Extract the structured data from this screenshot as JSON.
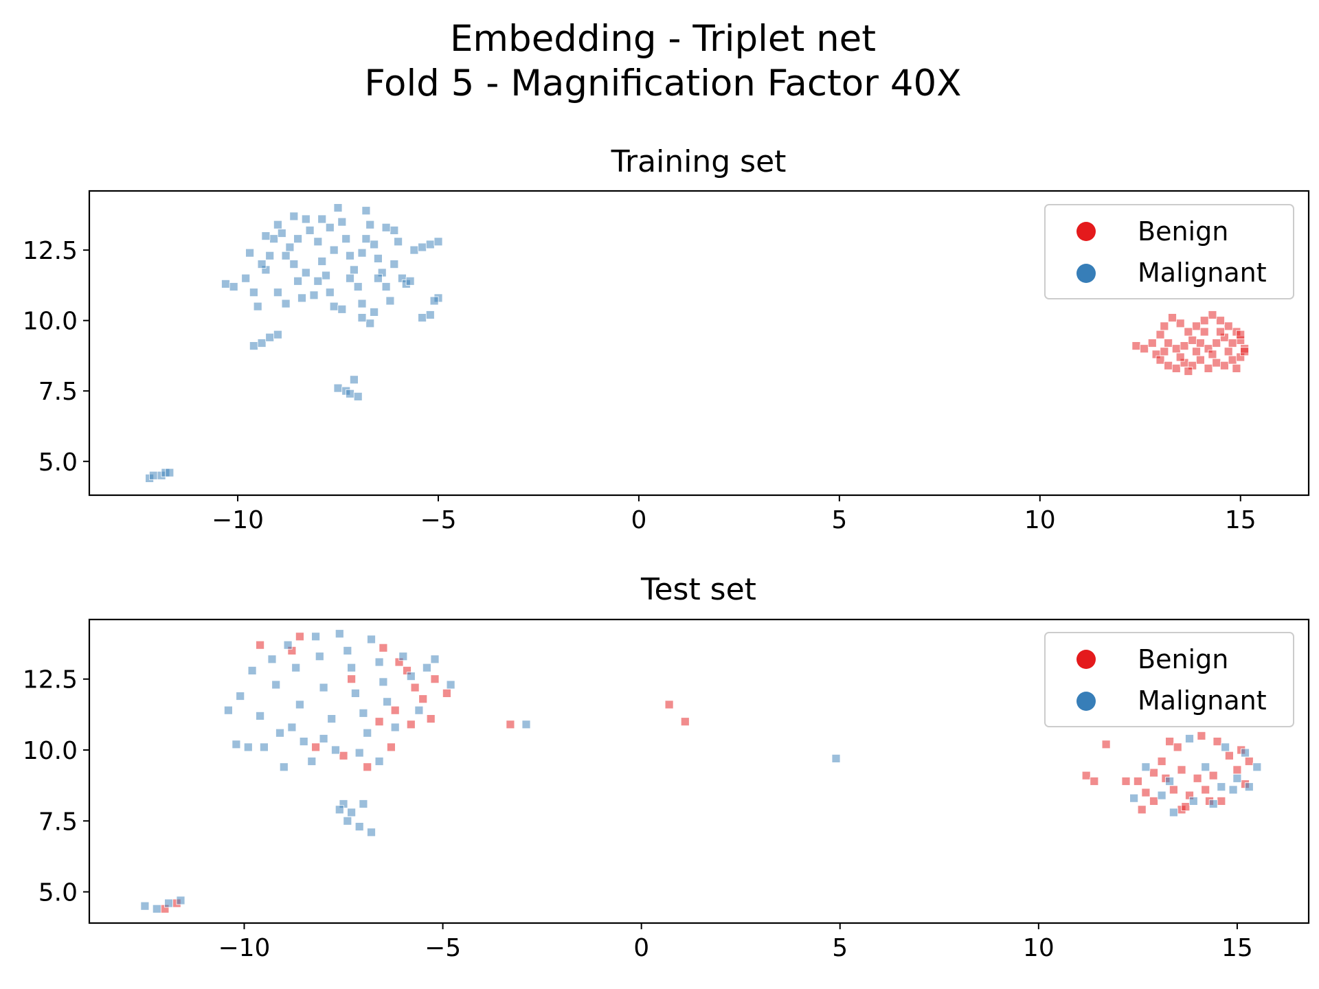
{
  "figure": {
    "title_line1": "Embedding - Triplet net",
    "title_line2": "Fold 5 - Magnification Factor 40X"
  },
  "chart_data": [
    {
      "type": "scatter",
      "title": "Training set",
      "xlabel": "",
      "ylabel": "",
      "xlim": [
        -13.7,
        16.7
      ],
      "ylim": [
        3.8,
        14.6
      ],
      "xticks": [
        -10,
        -5,
        0,
        5,
        10,
        15
      ],
      "xtick_labels": [
        "−10",
        "−5",
        "0",
        "5",
        "10",
        "15"
      ],
      "yticks": [
        5.0,
        7.5,
        10.0,
        12.5
      ],
      "ytick_labels": [
        "5.0",
        "7.5",
        "10.0",
        "12.5"
      ],
      "grid": false,
      "legend": {
        "location": "upper right",
        "entries": [
          "Benign",
          "Malignant"
        ]
      },
      "series": [
        {
          "name": "Benign",
          "color": "#e41a1c",
          "marker": "square",
          "points": [
            [
              12.4,
              9.1
            ],
            [
              12.6,
              9.0
            ],
            [
              12.9,
              8.8
            ],
            [
              13.0,
              8.6
            ],
            [
              13.2,
              8.4
            ],
            [
              13.4,
              8.3
            ],
            [
              13.6,
              8.5
            ],
            [
              13.8,
              8.4
            ],
            [
              14.0,
              8.6
            ],
            [
              14.2,
              8.3
            ],
            [
              14.4,
              8.5
            ],
            [
              14.6,
              8.4
            ],
            [
              14.8,
              8.6
            ],
            [
              15.0,
              8.7
            ],
            [
              15.1,
              9.0
            ],
            [
              15.0,
              9.3
            ],
            [
              14.9,
              9.6
            ],
            [
              14.7,
              9.8
            ],
            [
              14.5,
              10.0
            ],
            [
              14.3,
              10.2
            ],
            [
              14.1,
              10.0
            ],
            [
              13.9,
              9.8
            ],
            [
              13.7,
              9.6
            ],
            [
              13.5,
              9.9
            ],
            [
              13.3,
              10.1
            ],
            [
              13.1,
              9.8
            ],
            [
              13.0,
              9.5
            ],
            [
              13.2,
              9.2
            ],
            [
              13.4,
              9.0
            ],
            [
              13.6,
              9.1
            ],
            [
              13.8,
              9.3
            ],
            [
              14.0,
              9.2
            ],
            [
              14.2,
              9.0
            ],
            [
              14.4,
              9.2
            ],
            [
              14.6,
              9.4
            ],
            [
              14.8,
              9.2
            ],
            [
              15.0,
              9.5
            ],
            [
              13.9,
              8.9
            ],
            [
              14.3,
              8.8
            ],
            [
              14.7,
              8.9
            ],
            [
              13.5,
              8.7
            ],
            [
              13.1,
              8.9
            ],
            [
              12.8,
              9.2
            ],
            [
              14.1,
              9.6
            ],
            [
              14.5,
              9.6
            ],
            [
              13.7,
              8.2
            ],
            [
              14.9,
              8.3
            ],
            [
              15.1,
              8.9
            ]
          ]
        },
        {
          "name": "Malignant",
          "color": "#377eb8",
          "marker": "square",
          "points": [
            [
              -12.2,
              4.4
            ],
            [
              -12.1,
              4.5
            ],
            [
              -11.9,
              4.5
            ],
            [
              -11.8,
              4.6
            ],
            [
              -11.7,
              4.6
            ],
            [
              -7.5,
              7.6
            ],
            [
              -7.3,
              7.5
            ],
            [
              -7.2,
              7.4
            ],
            [
              -7.1,
              7.9
            ],
            [
              -7.0,
              7.3
            ],
            [
              -9.6,
              9.1
            ],
            [
              -9.4,
              9.2
            ],
            [
              -9.2,
              9.4
            ],
            [
              -9.0,
              9.5
            ],
            [
              -5.4,
              10.1
            ],
            [
              -5.2,
              10.2
            ],
            [
              -5.0,
              10.8
            ],
            [
              -5.1,
              10.7
            ],
            [
              -6.7,
              9.9
            ],
            [
              -6.9,
              10.1
            ],
            [
              -10.3,
              11.3
            ],
            [
              -10.1,
              11.2
            ],
            [
              -9.8,
              11.5
            ],
            [
              -9.6,
              11.0
            ],
            [
              -9.5,
              10.5
            ],
            [
              -9.3,
              11.8
            ],
            [
              -9.2,
              12.3
            ],
            [
              -9.1,
              12.9
            ],
            [
              -9.0,
              13.4
            ],
            [
              -8.9,
              13.1
            ],
            [
              -8.7,
              12.6
            ],
            [
              -8.6,
              12.0
            ],
            [
              -8.5,
              11.4
            ],
            [
              -8.4,
              10.8
            ],
            [
              -8.3,
              13.6
            ],
            [
              -8.2,
              13.2
            ],
            [
              -8.0,
              12.8
            ],
            [
              -7.9,
              12.1
            ],
            [
              -7.8,
              11.6
            ],
            [
              -7.7,
              11.0
            ],
            [
              -7.6,
              10.5
            ],
            [
              -7.5,
              14.0
            ],
            [
              -7.4,
              13.5
            ],
            [
              -7.3,
              12.9
            ],
            [
              -7.2,
              12.3
            ],
            [
              -7.1,
              11.8
            ],
            [
              -7.0,
              11.2
            ],
            [
              -6.9,
              10.6
            ],
            [
              -6.8,
              13.9
            ],
            [
              -6.7,
              13.4
            ],
            [
              -6.6,
              12.7
            ],
            [
              -6.5,
              12.2
            ],
            [
              -6.4,
              11.7
            ],
            [
              -6.3,
              11.2
            ],
            [
              -6.2,
              10.7
            ],
            [
              -6.1,
              13.2
            ],
            [
              -6.0,
              12.8
            ],
            [
              -5.9,
              11.5
            ],
            [
              -5.8,
              11.3
            ],
            [
              -5.6,
              12.5
            ],
            [
              -5.4,
              12.6
            ],
            [
              -5.2,
              12.7
            ],
            [
              -5.0,
              12.8
            ],
            [
              -9.4,
              12.0
            ],
            [
              -9.0,
              11.0
            ],
            [
              -8.8,
              10.6
            ],
            [
              -8.1,
              10.9
            ],
            [
              -7.4,
              10.4
            ],
            [
              -6.6,
              10.3
            ],
            [
              -8.6,
              13.7
            ],
            [
              -7.9,
              13.6
            ],
            [
              -6.3,
              13.3
            ],
            [
              -9.7,
              12.4
            ],
            [
              -8.3,
              11.7
            ],
            [
              -7.6,
              12.5
            ],
            [
              -6.9,
              12.4
            ],
            [
              -6.1,
              12.0
            ],
            [
              -5.7,
              11.4
            ],
            [
              -8.8,
              12.3
            ],
            [
              -8.0,
              11.4
            ],
            [
              -7.2,
              11.5
            ],
            [
              -6.5,
              11.5
            ],
            [
              -9.3,
              13.0
            ],
            [
              -7.7,
              13.3
            ],
            [
              -6.8,
              12.9
            ],
            [
              -8.5,
              12.9
            ]
          ]
        }
      ]
    },
    {
      "type": "scatter",
      "title": "Test set",
      "xlabel": "",
      "ylabel": "",
      "xlim": [
        -13.9,
        16.8
      ],
      "ylim": [
        3.9,
        14.6
      ],
      "xticks": [
        -10,
        -5,
        0,
        5,
        10,
        15
      ],
      "xtick_labels": [
        "−10",
        "−5",
        "0",
        "5",
        "10",
        "15"
      ],
      "yticks": [
        5.0,
        7.5,
        10.0,
        12.5
      ],
      "ytick_labels": [
        "5.0",
        "7.5",
        "10.0",
        "12.5"
      ],
      "grid": false,
      "legend": {
        "location": "upper right",
        "entries": [
          "Benign",
          "Malignant"
        ]
      },
      "series": [
        {
          "name": "Benign",
          "color": "#e41a1c",
          "marker": "square",
          "points": [
            [
              -12.0,
              4.4
            ],
            [
              -11.7,
              4.6
            ],
            [
              -9.6,
              13.7
            ],
            [
              -8.6,
              14.0
            ],
            [
              -8.8,
              13.5
            ],
            [
              -6.5,
              13.6
            ],
            [
              -6.1,
              13.1
            ],
            [
              -5.9,
              12.8
            ],
            [
              -5.7,
              12.2
            ],
            [
              -5.5,
              11.8
            ],
            [
              -5.3,
              11.1
            ],
            [
              -5.8,
              10.9
            ],
            [
              -5.2,
              12.5
            ],
            [
              -4.9,
              12.0
            ],
            [
              -6.2,
              11.4
            ],
            [
              -6.6,
              11.0
            ],
            [
              -6.3,
              10.1
            ],
            [
              -6.9,
              9.4
            ],
            [
              -7.5,
              9.8
            ],
            [
              -8.2,
              10.1
            ],
            [
              -7.3,
              12.5
            ],
            [
              -3.3,
              10.9
            ],
            [
              0.7,
              11.6
            ],
            [
              1.1,
              11.0
            ],
            [
              11.2,
              9.1
            ],
            [
              11.4,
              8.9
            ],
            [
              11.7,
              10.2
            ],
            [
              12.2,
              8.9
            ],
            [
              12.5,
              8.9
            ],
            [
              12.7,
              8.5
            ],
            [
              12.6,
              7.9
            ],
            [
              12.9,
              9.2
            ],
            [
              13.1,
              9.6
            ],
            [
              13.3,
              10.3
            ],
            [
              13.5,
              10.1
            ],
            [
              13.6,
              9.3
            ],
            [
              13.4,
              8.6
            ],
            [
              13.6,
              7.9
            ],
            [
              13.8,
              8.4
            ],
            [
              14.0,
              9.0
            ],
            [
              14.2,
              8.6
            ],
            [
              14.4,
              9.1
            ],
            [
              14.6,
              8.2
            ],
            [
              14.8,
              9.8
            ],
            [
              15.0,
              9.3
            ],
            [
              15.2,
              8.8
            ],
            [
              14.1,
              10.5
            ],
            [
              14.5,
              10.3
            ],
            [
              13.2,
              9.0
            ],
            [
              12.9,
              8.2
            ],
            [
              15.3,
              9.6
            ],
            [
              13.7,
              8.0
            ],
            [
              14.3,
              8.2
            ],
            [
              15.1,
              10.0
            ]
          ]
        },
        {
          "name": "Malignant",
          "color": "#377eb8",
          "marker": "square",
          "points": [
            [
              -12.5,
              4.5
            ],
            [
              -12.2,
              4.4
            ],
            [
              -11.9,
              4.6
            ],
            [
              -11.6,
              4.7
            ],
            [
              -7.5,
              8.1
            ],
            [
              -7.3,
              7.8
            ],
            [
              -7.0,
              8.1
            ],
            [
              -7.4,
              7.5
            ],
            [
              -7.1,
              7.3
            ],
            [
              -6.8,
              7.1
            ],
            [
              -7.6,
              7.9
            ],
            [
              -10.4,
              11.4
            ],
            [
              -10.2,
              10.2
            ],
            [
              -10.1,
              11.9
            ],
            [
              -9.8,
              12.8
            ],
            [
              -9.6,
              11.2
            ],
            [
              -9.5,
              10.1
            ],
            [
              -9.3,
              13.2
            ],
            [
              -9.2,
              12.3
            ],
            [
              -9.1,
              10.6
            ],
            [
              -9.0,
              9.4
            ],
            [
              -8.9,
              13.7
            ],
            [
              -8.7,
              12.9
            ],
            [
              -8.6,
              11.6
            ],
            [
              -8.5,
              10.3
            ],
            [
              -8.3,
              9.6
            ],
            [
              -8.2,
              14.0
            ],
            [
              -8.1,
              13.3
            ],
            [
              -8.0,
              12.2
            ],
            [
              -7.8,
              11.1
            ],
            [
              -7.7,
              10.0
            ],
            [
              -7.6,
              14.1
            ],
            [
              -7.4,
              13.5
            ],
            [
              -7.3,
              12.9
            ],
            [
              -7.2,
              12.0
            ],
            [
              -7.0,
              11.3
            ],
            [
              -6.9,
              10.6
            ],
            [
              -6.8,
              13.9
            ],
            [
              -6.6,
              13.1
            ],
            [
              -6.5,
              12.4
            ],
            [
              -6.4,
              11.7
            ],
            [
              -6.2,
              10.8
            ],
            [
              -6.0,
              13.3
            ],
            [
              -5.8,
              12.6
            ],
            [
              -5.6,
              11.4
            ],
            [
              -5.4,
              12.9
            ],
            [
              -5.2,
              13.2
            ],
            [
              -4.8,
              12.3
            ],
            [
              -9.9,
              10.1
            ],
            [
              -8.8,
              10.8
            ],
            [
              -8.0,
              10.4
            ],
            [
              -7.1,
              9.9
            ],
            [
              -6.6,
              9.6
            ],
            [
              -2.9,
              10.9
            ],
            [
              4.9,
              9.7
            ],
            [
              12.4,
              8.3
            ],
            [
              12.7,
              9.4
            ],
            [
              13.4,
              7.8
            ],
            [
              13.9,
              8.2
            ],
            [
              14.4,
              8.1
            ],
            [
              14.9,
              8.6
            ],
            [
              15.3,
              8.7
            ],
            [
              15.5,
              9.4
            ],
            [
              14.7,
              10.1
            ],
            [
              13.8,
              10.4
            ],
            [
              13.3,
              8.9
            ],
            [
              14.2,
              9.4
            ],
            [
              15.0,
              9.0
            ],
            [
              14.6,
              8.7
            ],
            [
              13.1,
              8.4
            ],
            [
              15.2,
              9.9
            ]
          ]
        }
      ]
    }
  ],
  "legend_labels": {
    "benign": "Benign",
    "malignant": "Malignant"
  }
}
